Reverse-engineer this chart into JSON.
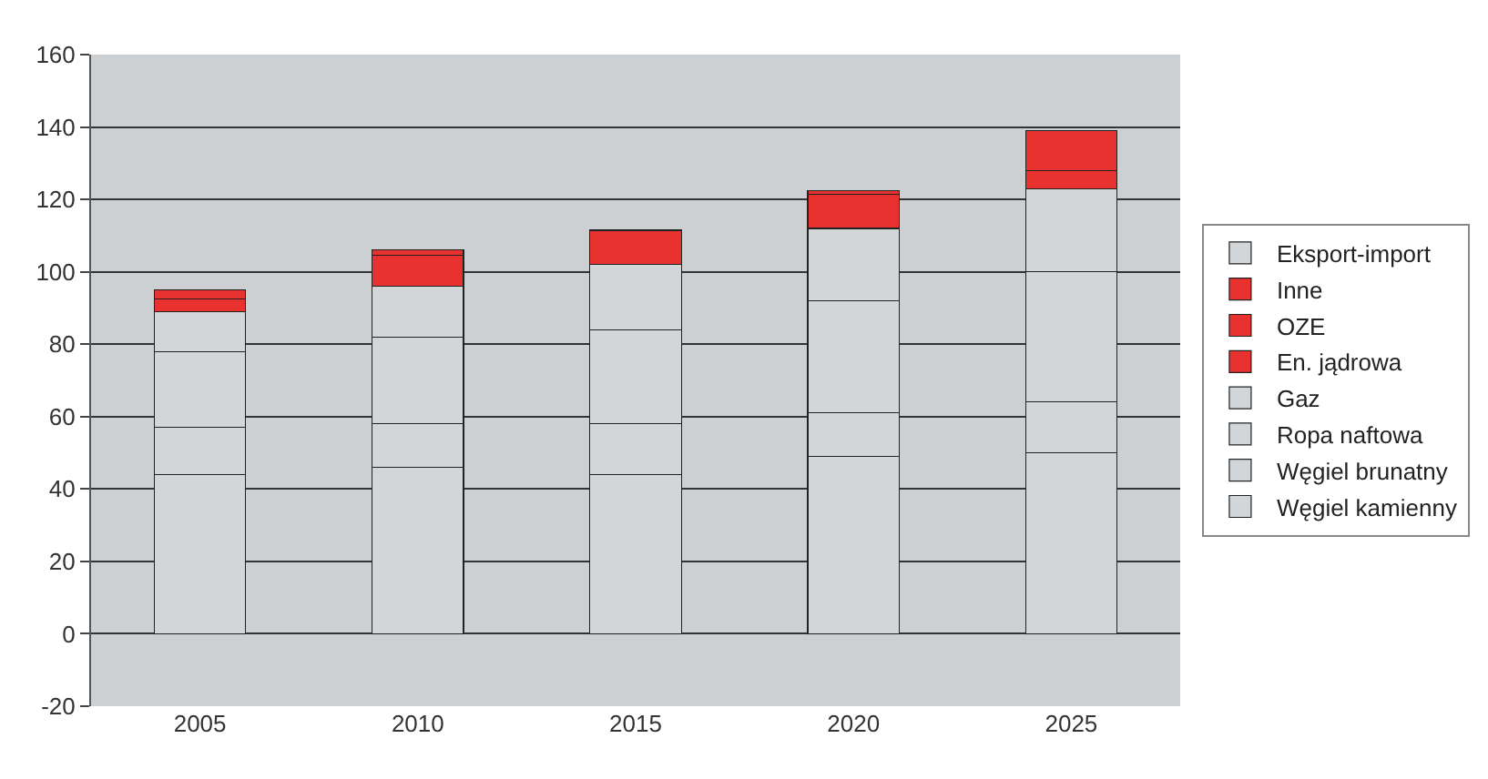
{
  "chart_data": {
    "type": "bar",
    "stacked": true,
    "categories": [
      "2005",
      "2010",
      "2015",
      "2020",
      "2025"
    ],
    "series": [
      {
        "name": "Węgiel kamienny",
        "color": "#d3d6d9",
        "values": [
          44,
          46,
          44,
          49,
          50
        ]
      },
      {
        "name": "Węgiel brunatny",
        "color": "#d3d6d9",
        "values": [
          13,
          12,
          14,
          12,
          14
        ]
      },
      {
        "name": "Ropa naftowa",
        "color": "#d3d6d9",
        "values": [
          21,
          24,
          26,
          31,
          36
        ]
      },
      {
        "name": "Gaz",
        "color": "#d3d6d9",
        "values": [
          11,
          14,
          18,
          20,
          23
        ]
      },
      {
        "name": "En. jądrowa",
        "color": "#e8322f",
        "values": [
          null,
          null,
          null,
          null,
          5
        ]
      },
      {
        "name": "OZE",
        "color": "#e8322f",
        "values": [
          3.5,
          8.5,
          9.5,
          9.5,
          11
        ]
      },
      {
        "name": "Inne",
        "color": "#e8322f",
        "values": [
          2.5,
          1.5,
          null,
          1,
          null
        ]
      },
      {
        "name": "Eksport-import",
        "color": "#d3d6d9",
        "values": [
          null,
          null,
          null,
          null,
          null
        ]
      }
    ],
    "ylim": [
      -20,
      160
    ],
    "yticks": [
      -20,
      0,
      20,
      40,
      60,
      80,
      100,
      120,
      140,
      160
    ],
    "grid": "y",
    "legend": "right"
  }
}
